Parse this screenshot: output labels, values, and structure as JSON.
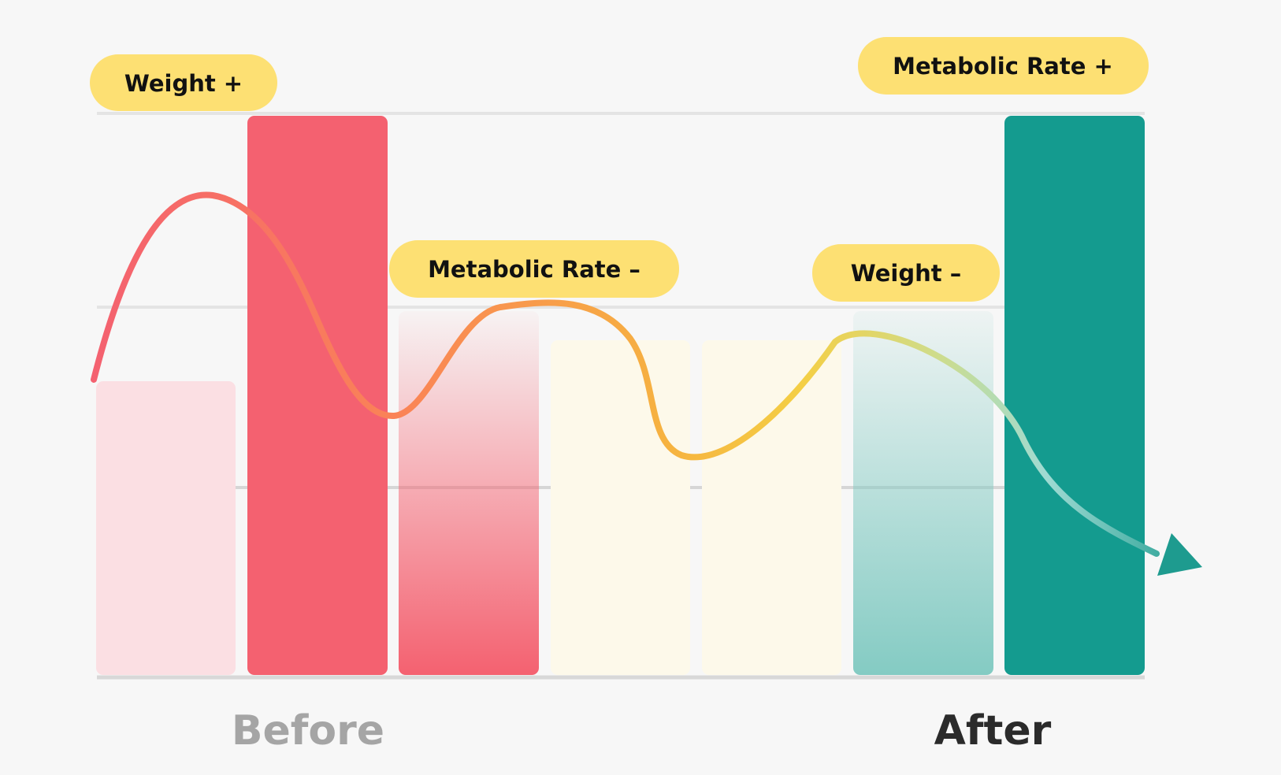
{
  "labels": {
    "weight_up": "Weight +",
    "metabolic_down": "Metabolic Rate –",
    "weight_down": "Weight –",
    "metabolic_up": "Metabolic Rate +",
    "before": "Before",
    "after": "After"
  },
  "colors": {
    "background": "#f7f7f7",
    "pill": "#fde073",
    "red": "#f46170",
    "light_pink": "#fbdfe3",
    "cream": "#fdf9ea",
    "teal": "#149b8f",
    "light_teal": "#84cbc3",
    "before_label": "#a5a5a5",
    "after_label": "#2b2b2b"
  }
}
